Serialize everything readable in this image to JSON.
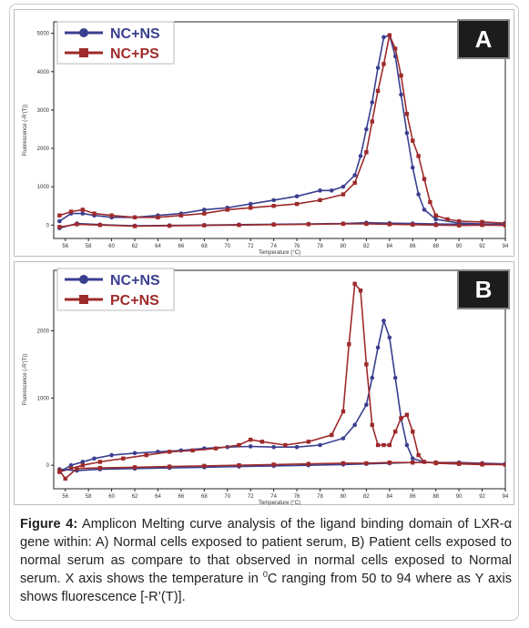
{
  "chart_data": [
    {
      "type": "line",
      "panel_label": "A",
      "xlabel": "Temperature (°C)",
      "ylabel": "Fluorescence (-R'(T))",
      "xlim": [
        55,
        94
      ],
      "ylim": [
        -350,
        5300
      ],
      "x_ticks": [
        56,
        58,
        60,
        62,
        64,
        66,
        68,
        70,
        72,
        74,
        76,
        78,
        80,
        82,
        84,
        86,
        88,
        90,
        92,
        94
      ],
      "y_ticks": [
        0,
        1000,
        2000,
        3000,
        4000,
        5000
      ],
      "y_tick_labels": [
        "0",
        "1000",
        "2000",
        "3000",
        "4000",
        "5000"
      ],
      "grid": false,
      "legend_position": "top-left",
      "series": [
        {
          "name": "NC+NS",
          "color": "#3a3f8f",
          "marker": "circle",
          "x": [
            55.5,
            56.5,
            57.5,
            58.5,
            60,
            62,
            64,
            66,
            68,
            70,
            72,
            74,
            76,
            78,
            79,
            80,
            81,
            81.5,
            82,
            82.5,
            83,
            83.5,
            84,
            84.5,
            85,
            85.5,
            86,
            86.5,
            87,
            88,
            90,
            92,
            94
          ],
          "y": [
            100,
            300,
            300,
            250,
            200,
            200,
            250,
            300,
            400,
            450,
            550,
            650,
            750,
            900,
            900,
            1000,
            1300,
            1800,
            2500,
            3200,
            4100,
            4900,
            4950,
            4400,
            3400,
            2400,
            1500,
            800,
            400,
            150,
            50,
            30,
            20
          ]
        },
        {
          "name": "NC+PS",
          "color": "#9e2a2b",
          "marker": "square",
          "x": [
            55.5,
            56.5,
            57.5,
            58.5,
            60,
            62,
            64,
            66,
            68,
            70,
            72,
            74,
            76,
            78,
            80,
            81,
            82,
            82.5,
            83,
            83.5,
            84,
            84.5,
            85,
            85.5,
            86,
            86.5,
            87,
            87.5,
            88,
            89,
            90,
            92,
            94
          ],
          "y": [
            250,
            350,
            400,
            300,
            250,
            200,
            200,
            250,
            300,
            400,
            450,
            500,
            550,
            650,
            800,
            1100,
            1900,
            2700,
            3500,
            4200,
            4950,
            4600,
            3900,
            2900,
            2200,
            1800,
            1200,
            600,
            250,
            150,
            100,
            80,
            50
          ]
        },
        {
          "name": "",
          "color": "#3a3f8f",
          "marker": "circle",
          "x": [
            55.5,
            57,
            59,
            62,
            65,
            68,
            71,
            74,
            77,
            80,
            82,
            84,
            86,
            88,
            90,
            92,
            94
          ],
          "y": [
            -80,
            40,
            10,
            -20,
            -10,
            0,
            10,
            20,
            30,
            40,
            60,
            50,
            40,
            30,
            20,
            10,
            10
          ]
        },
        {
          "name": "",
          "color": "#9e2a2b",
          "marker": "square",
          "x": [
            55.5,
            57,
            59,
            62,
            65,
            68,
            71,
            74,
            77,
            80,
            82,
            84,
            86,
            88,
            90,
            92,
            94
          ],
          "y": [
            -50,
            20,
            0,
            -30,
            -20,
            -10,
            0,
            10,
            20,
            30,
            30,
            20,
            10,
            0,
            -10,
            0,
            -10
          ]
        }
      ]
    },
    {
      "type": "line",
      "panel_label": "B",
      "xlabel": "Temperature (°C)",
      "ylabel": "Fluorescence (-R'(T))",
      "xlim": [
        55,
        94
      ],
      "ylim": [
        -350,
        2900
      ],
      "x_ticks": [
        56,
        58,
        60,
        62,
        64,
        66,
        68,
        70,
        72,
        74,
        76,
        78,
        80,
        82,
        84,
        86,
        88,
        90,
        92,
        94
      ],
      "y_ticks": [
        0,
        1000,
        2000
      ],
      "y_tick_labels": [
        "0",
        "1000",
        "2000"
      ],
      "grid": false,
      "legend_position": "top-left",
      "series": [
        {
          "name": "NC+NS",
          "color": "#3a3f8f",
          "marker": "circle",
          "x": [
            55.5,
            56.5,
            57.5,
            58.5,
            60,
            62,
            64,
            66,
            68,
            70,
            72,
            74,
            76,
            78,
            80,
            81,
            82,
            82.5,
            83,
            83.5,
            84,
            84.5,
            85,
            85.5,
            86,
            87,
            88,
            90,
            92,
            94
          ],
          "y": [
            -100,
            0,
            50,
            100,
            150,
            180,
            200,
            220,
            250,
            270,
            280,
            270,
            270,
            300,
            400,
            600,
            900,
            1300,
            1750,
            2150,
            1900,
            1300,
            700,
            300,
            100,
            50,
            30,
            20,
            20,
            10
          ]
        },
        {
          "name": "PC+NS",
          "color": "#9e2a2b",
          "marker": "square",
          "x": [
            55.5,
            56.5,
            57.5,
            59,
            61,
            63,
            65,
            67,
            69,
            71,
            72,
            73,
            75,
            77,
            79,
            80,
            80.5,
            81,
            81.5,
            82,
            82.5,
            83,
            83.5,
            84,
            84.5,
            85,
            85.5,
            86,
            86.5,
            87,
            88,
            90,
            92,
            94
          ],
          "y": [
            -100,
            -50,
            0,
            50,
            100,
            150,
            200,
            220,
            250,
            300,
            380,
            350,
            300,
            350,
            450,
            800,
            1800,
            2700,
            2600,
            1500,
            600,
            300,
            300,
            300,
            500,
            700,
            750,
            500,
            150,
            50,
            30,
            20,
            10,
            10
          ]
        },
        {
          "name": "",
          "color": "#3a3f8f",
          "marker": "circle",
          "x": [
            55.5,
            57,
            59,
            62,
            65,
            68,
            71,
            74,
            77,
            80,
            82,
            84,
            86,
            88,
            90,
            92,
            94
          ],
          "y": [
            -60,
            -80,
            -60,
            -50,
            -40,
            -30,
            -20,
            -10,
            0,
            10,
            20,
            30,
            40,
            40,
            40,
            30,
            20
          ]
        },
        {
          "name": "",
          "color": "#9e2a2b",
          "marker": "square",
          "x": [
            55.5,
            56,
            57,
            59,
            62,
            65,
            68,
            71,
            74,
            77,
            80,
            82,
            84,
            86,
            88,
            90,
            92,
            94
          ],
          "y": [
            -80,
            -200,
            -50,
            -40,
            -30,
            -20,
            -10,
            0,
            10,
            20,
            30,
            30,
            40,
            40,
            40,
            30,
            20,
            10
          ]
        }
      ]
    }
  ],
  "caption": {
    "label": "Figure 4:",
    "text_before_sup": " Amplicon Melting curve analysis of the ligand binding domain of LXR-α gene within: A) Normal cells exposed to patient serum, B) Patient cells exposed to normal serum as compare to that observed in normal cells exposed to Normal serum. X axis shows the temperature in ",
    "sup": "0",
    "text_after_sup": "C ranging from 50 to 94 where as Y axis shows fluorescence [-R’(T)]."
  }
}
